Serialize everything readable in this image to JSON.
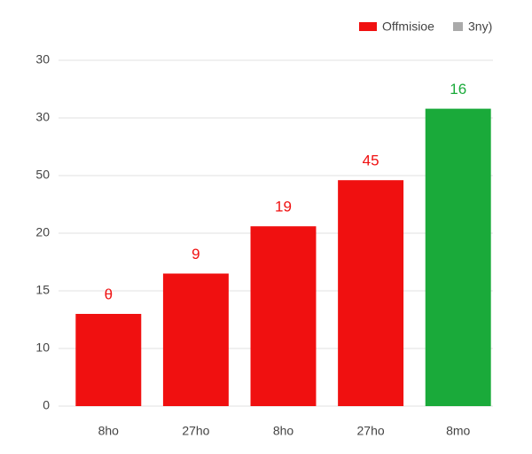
{
  "chart_data": {
    "type": "bar",
    "categories": [
      "8ho",
      "27ho",
      "8ho",
      "27ho",
      "8mo"
    ],
    "values": [
      8,
      11.5,
      15.6,
      19.6,
      25.8
    ],
    "colors": [
      "#f01010",
      "#f01010",
      "#f01010",
      "#f01010",
      "#1aaa3a"
    ],
    "annotations": [
      "θ",
      "9",
      "19",
      "45",
      "16"
    ],
    "legend": [
      {
        "name": "Offmisioe",
        "color": "#f01010"
      },
      {
        "name": "3ny)",
        "color": "#aaaaaa"
      }
    ],
    "ylim": [
      0,
      30
    ],
    "yticks": [
      0,
      {
        "value": 5,
        "label": "10"
      },
      {
        "value": 10,
        "label": "15"
      },
      {
        "value": 15,
        "label": "20"
      },
      {
        "value": 20,
        "label": "50"
      },
      {
        "value": 25,
        "label": "30"
      },
      {
        "value": 30,
        "label": "30"
      }
    ],
    "grid": true
  }
}
